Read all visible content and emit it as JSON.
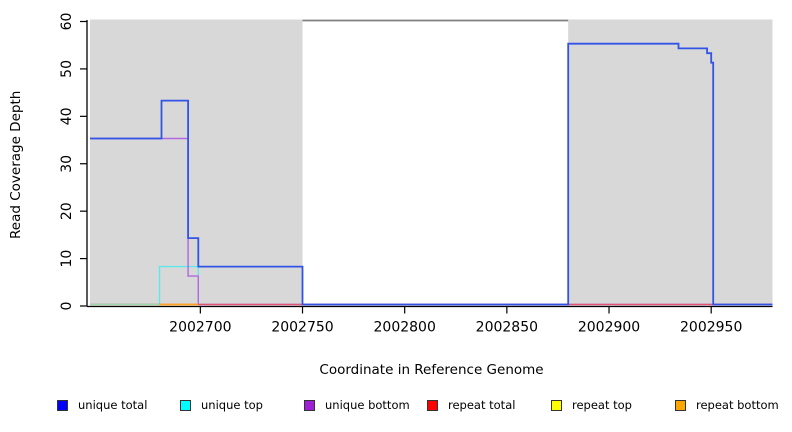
{
  "figure": {
    "background": "#ffffff",
    "axis_color": "#000000"
  },
  "chart_data": {
    "type": "line",
    "subtype": "step-coverage-plot",
    "title": "",
    "xlabel": "Coordinate in Reference Genome",
    "ylabel": "Read Coverage Depth",
    "xlim": [
      2002646,
      2002980
    ],
    "ylim": [
      0,
      60
    ],
    "x_ticks": [
      2002700,
      2002750,
      2002800,
      2002850,
      2002900,
      2002950
    ],
    "y_ticks": [
      0,
      10,
      20,
      30,
      40,
      50,
      60
    ],
    "grid": false,
    "legend_position": "bottom",
    "shaded_regions": [
      {
        "name": "repeat-region-left",
        "x0": 2002646,
        "x1": 2002750,
        "color": "#d8d8d8"
      },
      {
        "name": "repeat-region-right",
        "x0": 2002880,
        "x1": 2002980,
        "color": "#d8d8d8"
      }
    ],
    "boundary_line": {
      "y": 60,
      "x0": 2002750,
      "x1": 2002880,
      "color": "#808080"
    },
    "series": [
      {
        "name": "repeat top",
        "color": "#f2ef4f",
        "lwd": 1.2,
        "points": [
          [
            2002646,
            0
          ],
          [
            2002980,
            0
          ]
        ]
      },
      {
        "name": "unique top",
        "color": "#5fe8ea",
        "lwd": 1.4,
        "points": [
          [
            2002646,
            0
          ],
          [
            2002680,
            8
          ],
          [
            2002699,
            0
          ],
          [
            2002980,
            0
          ]
        ]
      },
      {
        "name": "unique bottom",
        "color": "#b168e0",
        "lwd": 1.4,
        "points": [
          [
            2002646,
            35
          ],
          [
            2002694,
            6
          ],
          [
            2002699,
            0
          ],
          [
            2002980,
            0
          ]
        ]
      },
      {
        "name": "repeat total",
        "color": "#e25572",
        "lwd": 1.4,
        "points": [
          [
            2002646,
            0
          ],
          [
            2002980,
            0
          ]
        ]
      },
      {
        "name": "baseline overlap",
        "color": "#9ed8a8",
        "lwd": 1.4,
        "points": [
          [
            2002646,
            0
          ],
          [
            2002680,
            0
          ]
        ]
      },
      {
        "name": "repeat bottom",
        "color": "#ffa41e",
        "lwd": 1.8,
        "points": [
          [
            2002680,
            0
          ],
          [
            2002699,
            0
          ]
        ]
      },
      {
        "name": "unique total",
        "color": "#3254e6",
        "lwd": 1.8,
        "points": [
          [
            2002646,
            35
          ],
          [
            2002681,
            43
          ],
          [
            2002694,
            14
          ],
          [
            2002699,
            8
          ],
          [
            2002750,
            0
          ],
          [
            2002880,
            55
          ],
          [
            2002934,
            54
          ],
          [
            2002948,
            53
          ],
          [
            2002950,
            51
          ],
          [
            2002951,
            0
          ],
          [
            2002980,
            0
          ]
        ]
      }
    ],
    "legend": [
      {
        "label": "unique total",
        "color": "#0000ff"
      },
      {
        "label": "unique top",
        "color": "#00ffff"
      },
      {
        "label": "unique bottom",
        "color": "#9f1fd4"
      },
      {
        "label": "repeat total",
        "color": "#ff0000"
      },
      {
        "label": "repeat top",
        "color": "#ffff00"
      },
      {
        "label": "repeat bottom",
        "color": "#ffa500"
      }
    ]
  }
}
